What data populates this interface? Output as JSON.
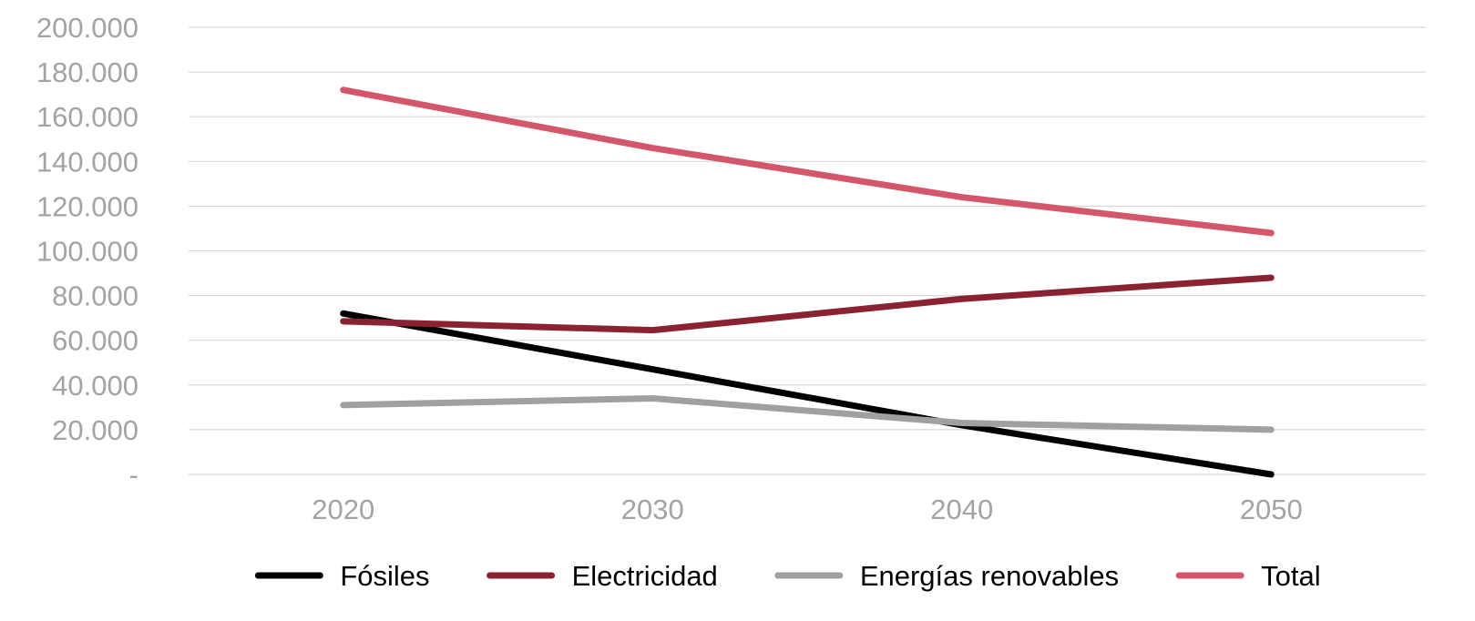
{
  "chart_data": {
    "type": "line",
    "title": "",
    "xlabel": "",
    "ylabel": "",
    "categories": [
      "2020",
      "2030",
      "2040",
      "2050"
    ],
    "ylim": [
      0,
      200000
    ],
    "yticks": [
      0,
      20000,
      40000,
      60000,
      80000,
      100000,
      120000,
      140000,
      160000,
      180000,
      200000
    ],
    "ytick_labels": [
      "-",
      "20.000",
      "40.000",
      "60.000",
      "80.000",
      "100.000",
      "120.000",
      "140.000",
      "160.000",
      "180.000",
      "200.000"
    ],
    "grid": true,
    "legend_position": "bottom",
    "series": [
      {
        "name": "Fósiles",
        "color": "#000000",
        "values": [
          72000,
          47000,
          22000,
          0
        ]
      },
      {
        "name": "Electricidad",
        "color": "#8b2232",
        "values": [
          68500,
          64500,
          78500,
          88000
        ]
      },
      {
        "name": "Energías renovables",
        "color": "#a0a0a0",
        "values": [
          31000,
          34000,
          23000,
          20000
        ]
      },
      {
        "name": "Total",
        "color": "#d4566b",
        "values": [
          172000,
          146000,
          124000,
          108000
        ]
      }
    ]
  }
}
